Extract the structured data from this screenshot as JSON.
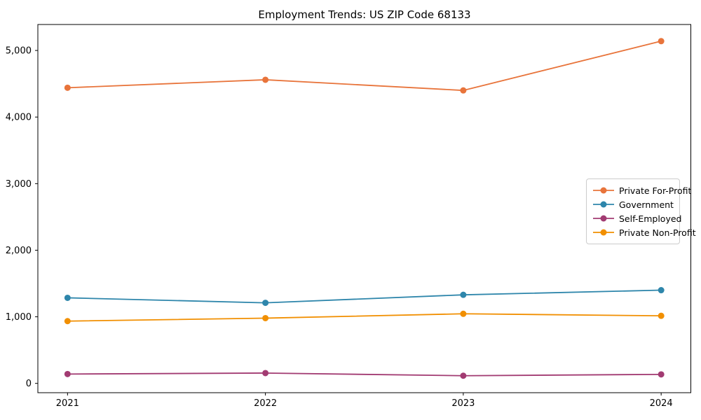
{
  "chart_data": {
    "type": "line",
    "title": "Employment Trends: US ZIP Code 68133",
    "xlabel": "",
    "ylabel": "",
    "categories": [
      "2021",
      "2022",
      "2023",
      "2024"
    ],
    "x": [
      2021,
      2022,
      2023,
      2024
    ],
    "series": [
      {
        "name": "Private For-Profit",
        "color": "#e8743b",
        "values": [
          4440,
          4560,
          4400,
          5140
        ]
      },
      {
        "name": "Government",
        "color": "#2e86ab",
        "values": [
          1285,
          1210,
          1330,
          1400
        ]
      },
      {
        "name": "Self-Employed",
        "color": "#a23b72",
        "values": [
          140,
          155,
          115,
          135
        ]
      },
      {
        "name": "Private Non-Profit",
        "color": "#f18f01",
        "values": [
          935,
          980,
          1045,
          1015
        ]
      }
    ],
    "yticks": [
      0,
      1000,
      2000,
      3000,
      4000,
      5000
    ],
    "ytick_labels": [
      "0",
      "1,000",
      "2,000",
      "3,000",
      "4,000",
      "5,000"
    ],
    "ylim": [
      -140,
      5390
    ],
    "xlim": [
      2020.85,
      2024.15
    ],
    "grid": false,
    "legend_position": "center right",
    "axis_color": "#000000",
    "background_color": "#ffffff"
  }
}
